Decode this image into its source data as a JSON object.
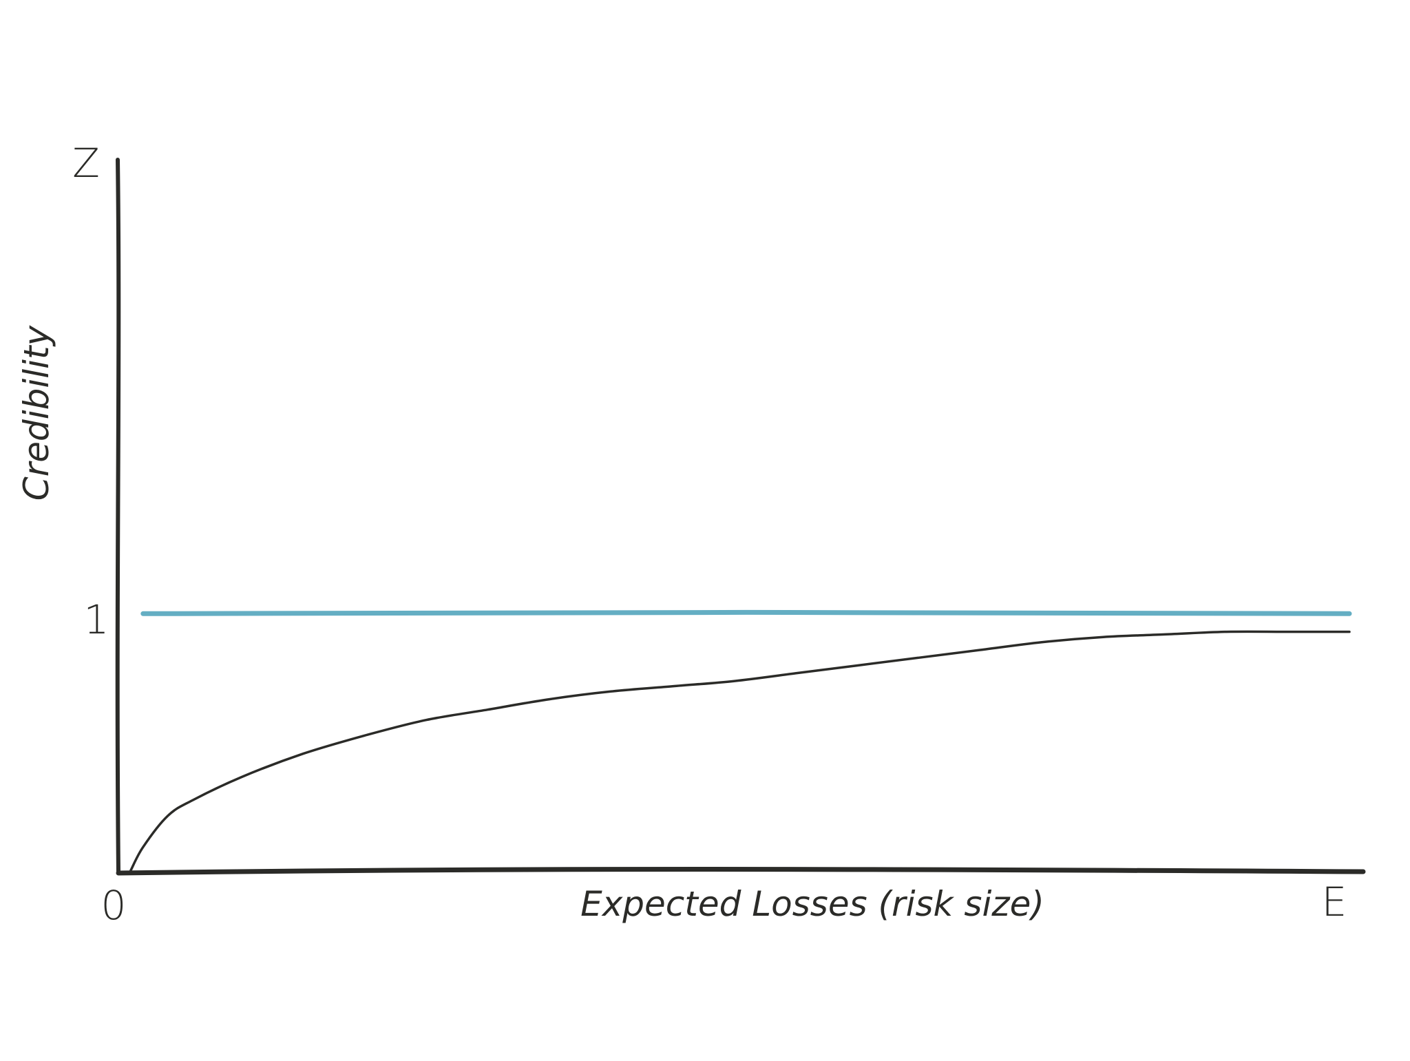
{
  "chart_data": {
    "type": "line",
    "title": "",
    "xlabel": "Expected Losses (risk size)",
    "ylabel": "Credibility",
    "x_tick_labels": [
      "0",
      "E"
    ],
    "y_tick_labels": [
      "1",
      "Z"
    ],
    "xlim": [
      0,
      1
    ],
    "ylim": [
      0,
      2.75
    ],
    "grid": false,
    "legend": "none",
    "colors": {
      "axis": "#2b2b28",
      "full_credibility_line": "#64aec3",
      "credibility_curve": "#2b2b28"
    },
    "series": [
      {
        "x": [
          0.01,
          0.02,
          0.04,
          0.06,
          0.1,
          0.15,
          0.2,
          0.25,
          0.3,
          0.35,
          0.4,
          0.45,
          0.5,
          0.55,
          0.6,
          0.65,
          0.7,
          0.75,
          0.8,
          0.85,
          0.9,
          0.95,
          1.0
        ],
        "y": [
          0.01,
          0.1,
          0.22,
          0.28,
          0.37,
          0.46,
          0.53,
          0.59,
          0.63,
          0.67,
          0.7,
          0.72,
          0.74,
          0.77,
          0.8,
          0.83,
          0.86,
          0.89,
          0.91,
          0.92,
          0.93,
          0.93,
          0.93
        ]
      },
      {
        "x": [
          0.02,
          1.0
        ],
        "y": [
          1.0,
          1.0
        ]
      }
    ]
  }
}
